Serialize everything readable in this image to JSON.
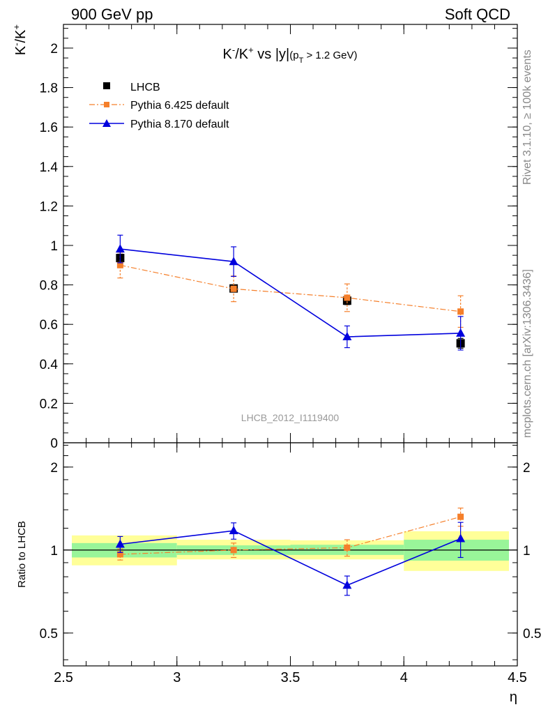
{
  "header": {
    "left": "900 GeV pp",
    "right": "Soft QCD"
  },
  "side_text": {
    "rivet": "Rivet 3.1.10, ≥ 100k events",
    "mcplots": "mcplots.cern.ch [arXiv:1306.3436]"
  },
  "chart_data": [
    {
      "type": "scatter",
      "title_main": "K",
      "title_sup1": "-",
      "title_mid": "/K",
      "title_sup2": "+",
      "title_rest": " vs |y|",
      "title_cut": "(p",
      "title_cut_sub": "T",
      "title_cut_rest": " > 1.2 GeV)",
      "ylabel_base": "K",
      "ylabel_sup1": "-",
      "ylabel_mid": "/K",
      "ylabel_sup2": "+",
      "watermark": "LHCB_2012_I1119400",
      "xlim": [
        2.5,
        4.5
      ],
      "ylim": [
        0,
        2.12
      ],
      "yticks": [
        0,
        0.2,
        0.4,
        0.6,
        0.8,
        1,
        1.2,
        1.4,
        1.6,
        1.8,
        2
      ],
      "ytick_labels": [
        "0",
        "0.2",
        "0.4",
        "0.6",
        "0.8",
        "1",
        "1.2",
        "1.4",
        "1.6",
        "1.8",
        "2"
      ],
      "legend_position": "top-left",
      "series": [
        {
          "name": "LHCB",
          "color": "#000000",
          "marker": "square",
          "line": "none",
          "x": [
            2.75,
            3.25,
            3.75,
            4.25
          ],
          "y": [
            0.936,
            0.782,
            0.72,
            0.504
          ],
          "err": [
            0.02,
            0.018,
            0.02,
            0.025
          ]
        },
        {
          "name": "Pythia 6.425 default",
          "color": "#f57f2a",
          "marker": "square-small",
          "line": "dashdot",
          "x": [
            2.75,
            3.25,
            3.75,
            4.25
          ],
          "y": [
            0.9,
            0.78,
            0.735,
            0.665
          ],
          "err": [
            0.065,
            0.065,
            0.07,
            0.08
          ]
        },
        {
          "name": "Pythia 8.170 default",
          "color": "#0000dd",
          "marker": "triangle",
          "line": "solid",
          "x": [
            2.75,
            3.25,
            3.75,
            4.25
          ],
          "y": [
            0.982,
            0.918,
            0.537,
            0.555
          ],
          "err": [
            0.07,
            0.075,
            0.055,
            0.085
          ]
        }
      ]
    },
    {
      "type": "scatter",
      "ylabel": "Ratio to LHCB",
      "xlabel": "η",
      "xlim": [
        2.5,
        4.5
      ],
      "ylim": [
        0.38,
        2.45
      ],
      "yscale": "log",
      "yticks": [
        0.5,
        1,
        2
      ],
      "ytick_labels": [
        "0.5",
        "1",
        "2"
      ],
      "xticks": [
        2.5,
        3,
        3.5,
        4,
        4.5
      ],
      "xtick_labels": [
        "2.5",
        "3",
        "3.5",
        "4",
        "4.5"
      ],
      "reference_line": 1,
      "bands": [
        {
          "x0": 2.5,
          "x1": 3.0,
          "inner": [
            0.94,
            1.06
          ],
          "outer": [
            0.88,
            1.13
          ]
        },
        {
          "x0": 3.0,
          "x1": 3.5,
          "inner": [
            0.96,
            1.04
          ],
          "outer": [
            0.925,
            1.09
          ]
        },
        {
          "x0": 3.5,
          "x1": 4.0,
          "inner": [
            0.96,
            1.045
          ],
          "outer": [
            0.925,
            1.085
          ]
        },
        {
          "x0": 4.0,
          "x1": 4.5,
          "inner": [
            0.915,
            1.09
          ],
          "outer": [
            0.84,
            1.17
          ]
        }
      ],
      "series": [
        {
          "name": "Pythia 6.425 default",
          "color": "#f57f2a",
          "marker": "square-small",
          "line": "dashdot",
          "x": [
            2.75,
            3.25,
            3.75,
            4.25
          ],
          "y": [
            0.965,
            1.0,
            1.02,
            1.32
          ],
          "err": [
            0.045,
            0.06,
            0.07,
            0.1
          ]
        },
        {
          "name": "Pythia 8.170 default",
          "color": "#0000dd",
          "marker": "triangle",
          "line": "solid",
          "x": [
            2.75,
            3.25,
            3.75,
            4.25
          ],
          "y": [
            1.05,
            1.175,
            0.745,
            1.1
          ],
          "err": [
            0.07,
            0.08,
            0.06,
            0.16
          ]
        }
      ]
    }
  ]
}
